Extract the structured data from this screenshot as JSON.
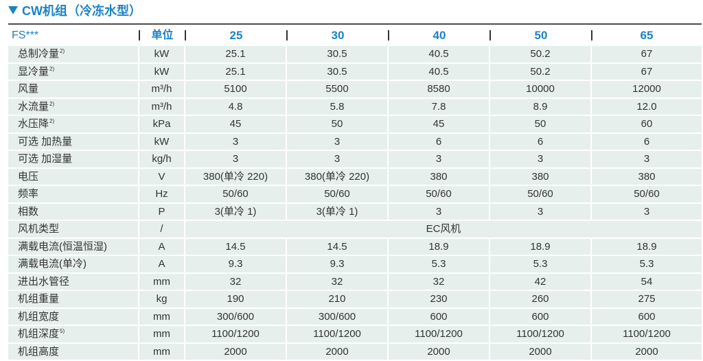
{
  "title": {
    "icon": "triangle-down-icon",
    "text": "CW机组（冷冻水型）"
  },
  "colors": {
    "accent": "#1a83c4",
    "row_background": "#e6efec",
    "text": "#333333",
    "rule": "#4d4d4d"
  },
  "table": {
    "header": {
      "model": "FS***",
      "unit_label": "单位",
      "models": [
        "25",
        "30",
        "40",
        "50",
        "65"
      ]
    },
    "rows": [
      {
        "label": "总制冷量",
        "note": "2)",
        "unit": "kW",
        "values": [
          "25.1",
          "30.5",
          "40.5",
          "50.2",
          "67"
        ]
      },
      {
        "label": "显冷量",
        "note": "2)",
        "unit": "kW",
        "values": [
          "25.1",
          "30.5",
          "40.5",
          "50.2",
          "67"
        ]
      },
      {
        "label": "风量",
        "unit": "m³/h",
        "values": [
          "5100",
          "5500",
          "8580",
          "10000",
          "12000"
        ]
      },
      {
        "label": "水流量",
        "note": "2)",
        "unit": "m³/h",
        "values": [
          "4.8",
          "5.8",
          "7.8",
          "8.9",
          "12.0"
        ]
      },
      {
        "label": "水压降",
        "note": "2)",
        "unit": "kPa",
        "values": [
          "45",
          "50",
          "45",
          "50",
          "60"
        ]
      },
      {
        "label": "可选 加热量",
        "unit": "kW",
        "values": [
          "3",
          "3",
          "6",
          "6",
          "6"
        ]
      },
      {
        "label": "可选 加湿量",
        "unit": "kg/h",
        "values": [
          "3",
          "3",
          "3",
          "3",
          "3"
        ]
      },
      {
        "label": "电压",
        "unit": "V",
        "values": [
          "380(单冷 220)",
          "380(单冷 220)",
          "380",
          "380",
          "380"
        ]
      },
      {
        "label": "频率",
        "unit": "Hz",
        "values": [
          "50/60",
          "50/60",
          "50/60",
          "50/60",
          "50/60"
        ]
      },
      {
        "label": "相数",
        "unit": "P",
        "values": [
          "3(单冷 1)",
          "3(单冷 1)",
          "3",
          "3",
          "3"
        ]
      },
      {
        "label": "风机类型",
        "unit": "/",
        "merged": "EC风机"
      },
      {
        "label": "满载电流(恒温恒湿)",
        "unit": "A",
        "values": [
          "14.5",
          "14.5",
          "18.9",
          "18.9",
          "18.9"
        ]
      },
      {
        "label": "满载电流(单冷)",
        "unit": "A",
        "values": [
          "9.3",
          "9.3",
          "5.3",
          "5.3",
          "5.3"
        ]
      },
      {
        "label": "进出水管径",
        "unit": "mm",
        "values": [
          "32",
          "32",
          "32",
          "42",
          "54"
        ]
      },
      {
        "label": "机组重量",
        "unit": "kg",
        "values": [
          "190",
          "210",
          "230",
          "260",
          "275"
        ]
      },
      {
        "label": "机组宽度",
        "unit": "mm",
        "values": [
          "300/600",
          "300/600",
          "600",
          "600",
          "600"
        ]
      },
      {
        "label": "机组深度",
        "note": "5)",
        "unit": "mm",
        "values": [
          "1100/1200",
          "1100/1200",
          "1100/1200",
          "1100/1200",
          "1100/1200"
        ]
      },
      {
        "label": "机组高度",
        "unit": "mm",
        "values": [
          "2000",
          "2000",
          "2000",
          "2000",
          "2000"
        ]
      }
    ]
  }
}
